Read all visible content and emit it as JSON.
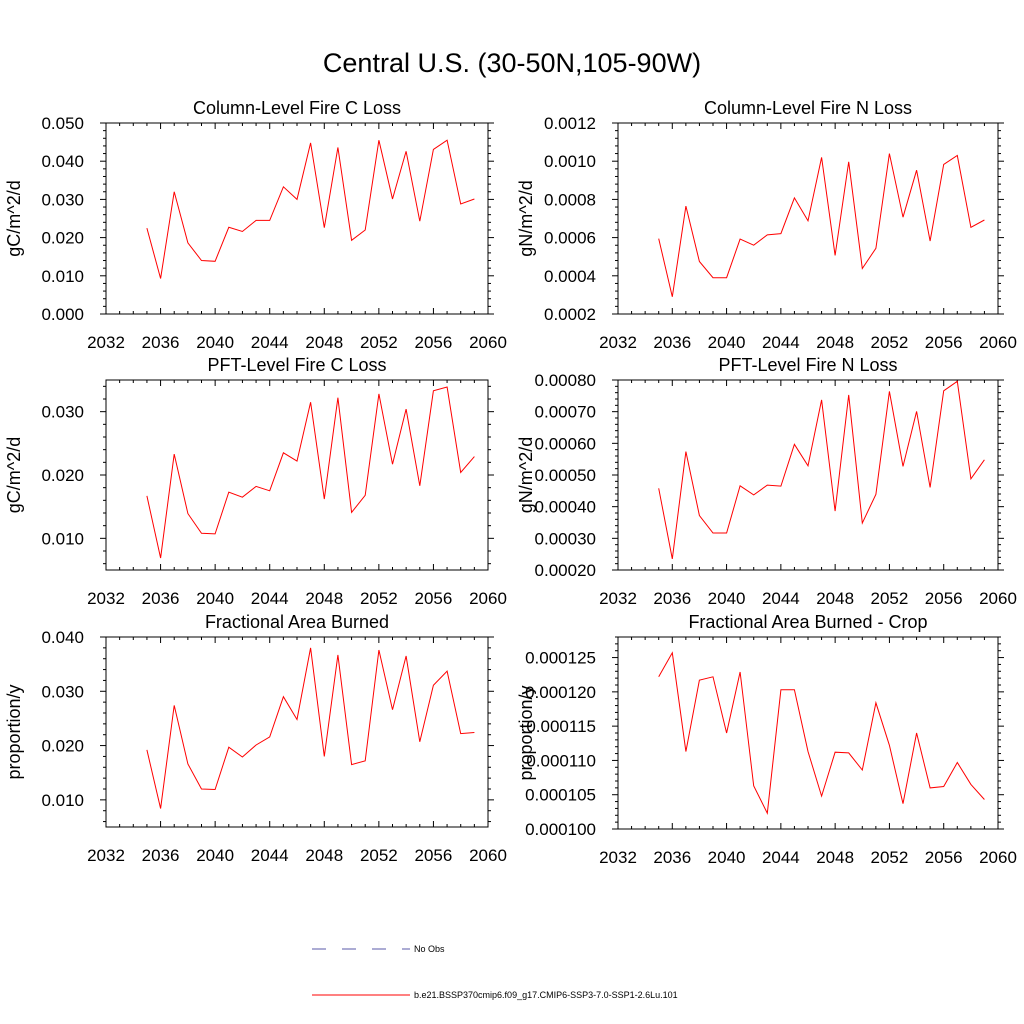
{
  "figure": {
    "title": "Central U.S. (30-50N,105-90W)"
  },
  "legend": {
    "obs_label": "No Obs",
    "obs_color": "#5a5aa8",
    "model_label": "b.e21.BSSP370cmip6.f09_g17.CMIP6-SSP3-7.0-SSP1-2.6Lu.101",
    "model_color": "#ff0000"
  },
  "chart_data": [
    {
      "type": "line",
      "title": "Column-Level Fire C Loss",
      "xlabel": "",
      "ylabel": "gC/m^2/d",
      "xlim": [
        2032,
        2060
      ],
      "ylim": [
        0.0,
        0.05
      ],
      "xticks": [
        2032,
        2036,
        2040,
        2044,
        2048,
        2052,
        2056,
        2060
      ],
      "xtick_labels": [
        "2032",
        "2036",
        "2040",
        "2044",
        "2048",
        "2052",
        "2056",
        "2060"
      ],
      "yticks": [
        0.0,
        0.01,
        0.02,
        0.03,
        0.04,
        0.05
      ],
      "ytick_labels": [
        "0.000",
        "0.010",
        "0.020",
        "0.030",
        "0.040",
        "0.050"
      ],
      "x": [
        2035,
        2036,
        2037,
        2038,
        2039,
        2040,
        2041,
        2042,
        2043,
        2044,
        2045,
        2046,
        2047,
        2048,
        2049,
        2050,
        2051,
        2052,
        2053,
        2054,
        2055,
        2056,
        2057,
        2058,
        2059
      ],
      "series": [
        {
          "values": [
            0.0225,
            0.0093,
            0.032,
            0.0186,
            0.014,
            0.0138,
            0.0227,
            0.0216,
            0.0245,
            0.0245,
            0.0333,
            0.03,
            0.0448,
            0.0226,
            0.0436,
            0.0193,
            0.022,
            0.0455,
            0.0301,
            0.0426,
            0.0243,
            0.0431,
            0.0455,
            0.0288,
            0.0301
          ]
        }
      ]
    },
    {
      "type": "line",
      "title": "Column-Level Fire N Loss",
      "xlabel": "",
      "ylabel": "gN/m^2/d",
      "xlim": [
        2032,
        2060
      ],
      "ylim": [
        0.0002,
        0.0012
      ],
      "xticks": [
        2032,
        2036,
        2040,
        2044,
        2048,
        2052,
        2056,
        2060
      ],
      "xtick_labels": [
        "2032",
        "2036",
        "2040",
        "2044",
        "2048",
        "2052",
        "2056",
        "2060"
      ],
      "yticks": [
        0.0002,
        0.0004,
        0.0006,
        0.0008,
        0.001,
        0.0012
      ],
      "ytick_labels": [
        "0.0002",
        "0.0004",
        "0.0006",
        "0.0008",
        "0.0010",
        "0.0012"
      ],
      "x": [
        2035,
        2036,
        2037,
        2038,
        2039,
        2040,
        2041,
        2042,
        2043,
        2044,
        2045,
        2046,
        2047,
        2048,
        2049,
        2050,
        2051,
        2052,
        2053,
        2054,
        2055,
        2056,
        2057,
        2058,
        2059
      ],
      "series": [
        {
          "values": [
            0.000595,
            0.00029,
            0.000765,
            0.000475,
            0.00039,
            0.00039,
            0.000592,
            0.00056,
            0.000614,
            0.000621,
            0.000808,
            0.000688,
            0.00102,
            0.000507,
            0.000997,
            0.000438,
            0.000544,
            0.00104,
            0.000707,
            0.000953,
            0.000582,
            0.000983,
            0.00103,
            0.000654,
            0.000692
          ]
        }
      ]
    },
    {
      "type": "line",
      "title": "PFT-Level Fire C Loss",
      "xlabel": "",
      "ylabel": "gC/m^2/d",
      "xlim": [
        2032,
        2060
      ],
      "ylim": [
        0.005,
        0.035
      ],
      "xticks": [
        2032,
        2036,
        2040,
        2044,
        2048,
        2052,
        2056,
        2060
      ],
      "xtick_labels": [
        "2032",
        "2036",
        "2040",
        "2044",
        "2048",
        "2052",
        "2056",
        "2060"
      ],
      "yticks": [
        0.01,
        0.02,
        0.03
      ],
      "ytick_labels": [
        "0.010",
        "0.020",
        "0.030"
      ],
      "x": [
        2035,
        2036,
        2037,
        2038,
        2039,
        2040,
        2041,
        2042,
        2043,
        2044,
        2045,
        2046,
        2047,
        2048,
        2049,
        2050,
        2051,
        2052,
        2053,
        2054,
        2055,
        2056,
        2057,
        2058,
        2059
      ],
      "series": [
        {
          "values": [
            0.0167,
            0.0069,
            0.0233,
            0.0139,
            0.0108,
            0.0107,
            0.0173,
            0.0165,
            0.0182,
            0.0175,
            0.0235,
            0.0222,
            0.0315,
            0.0162,
            0.0322,
            0.0141,
            0.0168,
            0.0328,
            0.0217,
            0.0304,
            0.0183,
            0.0333,
            0.0339,
            0.0204,
            0.0229
          ]
        }
      ]
    },
    {
      "type": "line",
      "title": "PFT-Level Fire N Loss",
      "xlabel": "",
      "ylabel": "gN/m^2/d",
      "xlim": [
        2032,
        2060
      ],
      "ylim": [
        0.0002,
        0.0008
      ],
      "xticks": [
        2032,
        2036,
        2040,
        2044,
        2048,
        2052,
        2056,
        2060
      ],
      "xtick_labels": [
        "2032",
        "2036",
        "2040",
        "2044",
        "2048",
        "2052",
        "2056",
        "2060"
      ],
      "yticks": [
        0.0002,
        0.0003,
        0.0004,
        0.0005,
        0.0006,
        0.0007,
        0.0008
      ],
      "ytick_labels": [
        "0.00020",
        "0.00030",
        "0.00040",
        "0.00050",
        "0.00060",
        "0.00070",
        "0.00080"
      ],
      "x": [
        2035,
        2036,
        2037,
        2038,
        2039,
        2040,
        2041,
        2042,
        2043,
        2044,
        2045,
        2046,
        2047,
        2048,
        2049,
        2050,
        2051,
        2052,
        2053,
        2054,
        2055,
        2056,
        2057,
        2058,
        2059
      ],
      "series": [
        {
          "values": [
            0.000458,
            0.000235,
            0.000574,
            0.000372,
            0.000317,
            0.000317,
            0.000466,
            0.000437,
            0.000468,
            0.000465,
            0.000597,
            0.000529,
            0.000737,
            0.000386,
            0.000753,
            0.000348,
            0.000439,
            0.000764,
            0.000527,
            0.000701,
            0.000461,
            0.000766,
            0.000796,
            0.000488,
            0.000548
          ]
        }
      ]
    },
    {
      "type": "line",
      "title": "Fractional Area Burned",
      "xlabel": "",
      "ylabel": "proportion/y",
      "xlim": [
        2032,
        2060
      ],
      "ylim": [
        0.005,
        0.04
      ],
      "xticks": [
        2032,
        2036,
        2040,
        2044,
        2048,
        2052,
        2056,
        2060
      ],
      "xtick_labels": [
        "2032",
        "2036",
        "2040",
        "2044",
        "2048",
        "2052",
        "2056",
        "2060"
      ],
      "yticks": [
        0.01,
        0.02,
        0.03,
        0.04
      ],
      "ytick_labels": [
        "0.010",
        "0.020",
        "0.030",
        "0.040"
      ],
      "x": [
        2035,
        2036,
        2037,
        2038,
        2039,
        2040,
        2041,
        2042,
        2043,
        2044,
        2045,
        2046,
        2047,
        2048,
        2049,
        2050,
        2051,
        2052,
        2053,
        2054,
        2055,
        2056,
        2057,
        2058,
        2059
      ],
      "series": [
        {
          "values": [
            0.0192,
            0.0084,
            0.0274,
            0.0166,
            0.012,
            0.0119,
            0.0197,
            0.0179,
            0.0201,
            0.0216,
            0.029,
            0.0248,
            0.038,
            0.018,
            0.0367,
            0.0165,
            0.0172,
            0.0376,
            0.0266,
            0.0365,
            0.0207,
            0.0311,
            0.0337,
            0.0222,
            0.0224
          ]
        }
      ]
    },
    {
      "type": "line",
      "title": "Fractional Area Burned - Crop",
      "xlabel": "",
      "ylabel": "proportion/y",
      "xlim": [
        2032,
        2060
      ],
      "ylim": [
        0.0001,
        0.000128
      ],
      "xticks": [
        2032,
        2036,
        2040,
        2044,
        2048,
        2052,
        2056,
        2060
      ],
      "xtick_labels": [
        "2032",
        "2036",
        "2040",
        "2044",
        "2048",
        "2052",
        "2056",
        "2060"
      ],
      "yticks": [
        0.0001,
        0.000105,
        0.00011,
        0.000115,
        0.00012,
        0.000125
      ],
      "ytick_labels": [
        "0.000100",
        "0.000105",
        "0.000110",
        "0.000115",
        "0.000120",
        "0.000125"
      ],
      "x": [
        2035,
        2036,
        2037,
        2038,
        2039,
        2040,
        2041,
        2042,
        2043,
        2044,
        2045,
        2046,
        2047,
        2048,
        2049,
        2050,
        2051,
        2052,
        2053,
        2054,
        2055,
        2056,
        2057,
        2058,
        2059
      ],
      "series": [
        {
          "values": [
            0.0001222,
            0.0001257,
            0.0001113,
            0.0001217,
            0.0001222,
            0.000114,
            0.0001229,
            0.0001063,
            0.0001023,
            0.0001203,
            0.0001203,
            0.0001113,
            0.0001048,
            0.0001112,
            0.0001111,
            0.0001086,
            0.0001184,
            0.0001122,
            0.0001037,
            0.000114,
            0.000106,
            0.0001062,
            0.0001097,
            0.0001065,
            0.0001043
          ]
        }
      ]
    }
  ]
}
